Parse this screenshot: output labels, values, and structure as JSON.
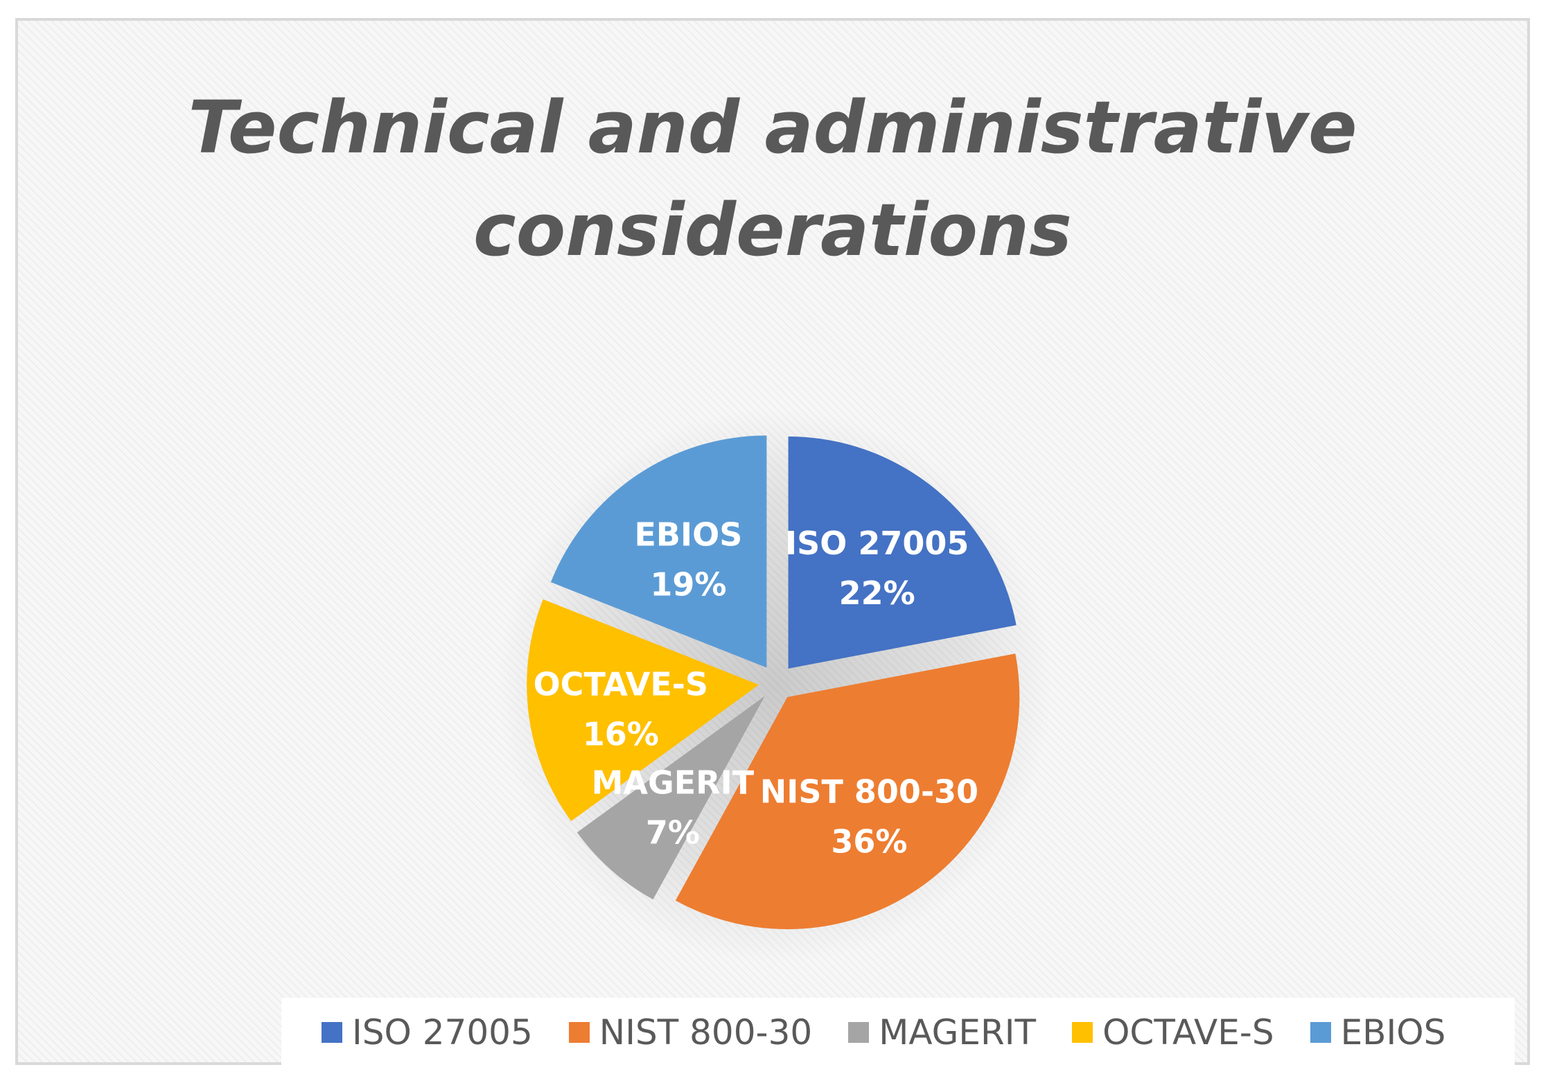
{
  "colors": {
    "ISO 27005": "#4472c4",
    "NIST 800-30": "#ed7d31",
    "MAGERIT": "#a5a5a5",
    "OCTAVE-S": "#ffc000",
    "EBIOS": "#5b9bd5"
  },
  "chart_data": {
    "type": "pie",
    "title_lines": [
      "Technical and administrative",
      "considerations"
    ],
    "categories": [
      "ISO 27005",
      "NIST 800-30",
      "MAGERIT",
      "OCTAVE-S",
      "EBIOS"
    ],
    "values": [
      22,
      36,
      7,
      16,
      19
    ],
    "value_labels": [
      "22%",
      "36%",
      "7%",
      "16%",
      "19%"
    ],
    "exploded": true,
    "data_labels": "inside",
    "legend": "bottom",
    "legend_items": [
      "ISO 27005",
      "NIST 800-30",
      "MAGERIT",
      "OCTAVE-S",
      "EBIOS"
    ]
  }
}
